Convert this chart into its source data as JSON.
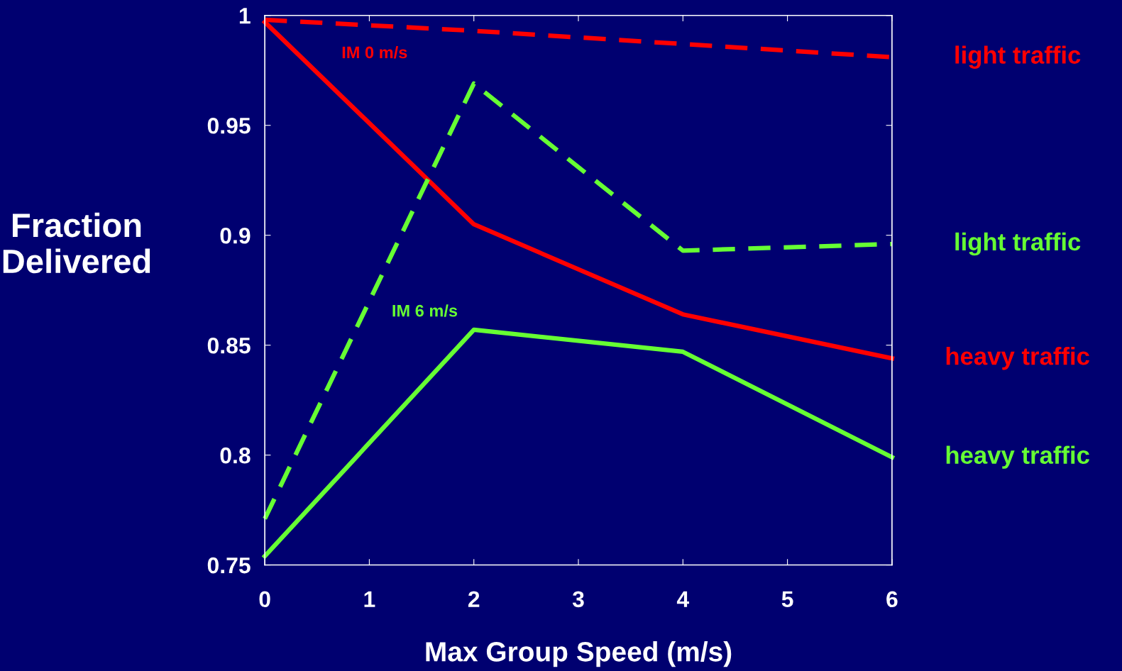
{
  "chart_data": {
    "type": "line",
    "xlabel": "Max Group Speed (m/s)",
    "ylabel": "Fraction\nDelivered",
    "x": [
      0,
      2,
      4,
      6
    ],
    "series": [
      {
        "name": "light traffic",
        "color": "#ff0000",
        "line_style": "dashed",
        "values": [
          0.998,
          0.993,
          0.987,
          0.981
        ]
      },
      {
        "name": "heavy traffic",
        "color": "#ff0000",
        "line_style": "solid",
        "values": [
          0.997,
          0.905,
          0.864,
          0.844
        ]
      },
      {
        "name": "light traffic",
        "color": "#66ff33",
        "line_style": "dashed",
        "values": [
          0.771,
          0.969,
          0.893,
          0.896
        ]
      },
      {
        "name": "heavy traffic",
        "color": "#66ff33",
        "line_style": "solid",
        "values": [
          0.754,
          0.857,
          0.847,
          0.799
        ]
      }
    ],
    "annotations": [
      "IM 0 m/s",
      "IM 6 m/s"
    ],
    "xlim": [
      0,
      6
    ],
    "xticks": [
      0,
      1,
      2,
      3,
      4,
      5,
      6
    ],
    "ylim": [
      0.75,
      1
    ],
    "yticks": [
      0.75,
      0.8,
      0.85,
      0.9,
      0.95,
      1
    ],
    "grid": false,
    "legend": false,
    "marker": "none"
  }
}
